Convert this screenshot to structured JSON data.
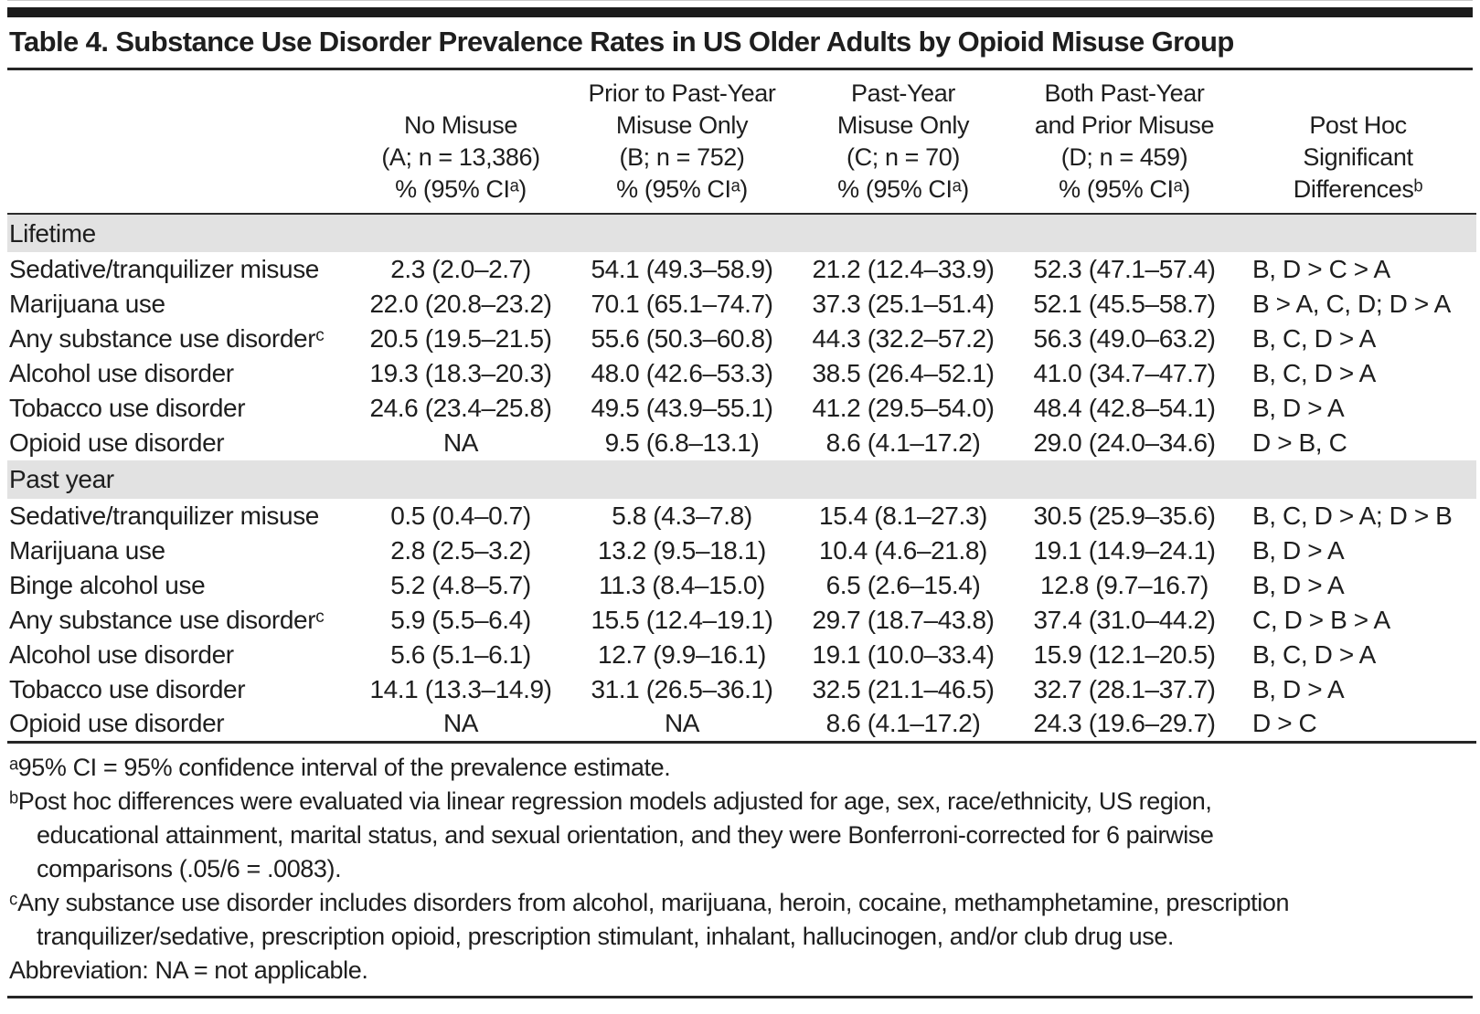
{
  "title": "Table 4. Substance Use Disorder Prevalence Rates in US Older Adults by Opioid Misuse Group",
  "colors": {
    "section_band": "#e2e2e2",
    "rule": "#262626",
    "text": "#1e1e1e"
  },
  "table": {
    "header": {
      "columns": [
        {
          "lines": []
        },
        {
          "lines": [
            "No Misuse",
            "(A; n = 13,386)",
            "% (95% CIᵃ)"
          ]
        },
        {
          "lines": [
            "Prior to Past-Year",
            "Misuse Only",
            "(B; n = 752)",
            "% (95% CIᵃ)"
          ]
        },
        {
          "lines": [
            "Past-Year",
            "Misuse Only",
            "(C; n = 70)",
            "% (95% CIᵃ)"
          ]
        },
        {
          "lines": [
            "Both Past-Year",
            "and Prior Misuse",
            "(D; n = 459)",
            "% (95% CIᵃ)"
          ]
        },
        {
          "lines": [
            "Post Hoc",
            "Significant",
            "Differencesᵇ"
          ]
        }
      ]
    },
    "sections": [
      {
        "label": "Lifetime",
        "rows": [
          {
            "label": "Sedative/tranquilizer misuse",
            "values": [
              "2.3 (2.0–2.7)",
              "54.1 (49.3–58.9)",
              "21.2 (12.4–33.9)",
              "52.3 (47.1–57.4)"
            ],
            "post_hoc": "B, D > C > A"
          },
          {
            "label": "Marijuana use",
            "values": [
              "22.0 (20.8–23.2)",
              "70.1 (65.1–74.7)",
              "37.3 (25.1–51.4)",
              "52.1 (45.5–58.7)"
            ],
            "post_hoc": "B > A, C, D; D > A"
          },
          {
            "label": "Any substance use disorderᶜ",
            "values": [
              "20.5 (19.5–21.5)",
              "55.6 (50.3–60.8)",
              "44.3 (32.2–57.2)",
              "56.3 (49.0–63.2)"
            ],
            "post_hoc": "B, C, D > A"
          },
          {
            "label": "Alcohol use disorder",
            "values": [
              "19.3 (18.3–20.3)",
              "48.0 (42.6–53.3)",
              "38.5 (26.4–52.1)",
              "41.0 (34.7–47.7)"
            ],
            "post_hoc": "B, C, D > A"
          },
          {
            "label": "Tobacco use disorder",
            "values": [
              "24.6 (23.4–25.8)",
              "49.5 (43.9–55.1)",
              "41.2 (29.5–54.0)",
              "48.4 (42.8–54.1)"
            ],
            "post_hoc": "B, D > A"
          },
          {
            "label": "Opioid use disorder",
            "values": [
              "NA",
              "9.5 (6.8–13.1)",
              "8.6 (4.1–17.2)",
              "29.0 (24.0–34.6)"
            ],
            "post_hoc": "D > B, C"
          }
        ]
      },
      {
        "label": "Past year",
        "rows": [
          {
            "label": "Sedative/tranquilizer misuse",
            "values": [
              "0.5 (0.4–0.7)",
              "5.8 (4.3–7.8)",
              "15.4 (8.1–27.3)",
              "30.5 (25.9–35.6)"
            ],
            "post_hoc": "B, C, D > A; D > B"
          },
          {
            "label": "Marijuana use",
            "values": [
              "2.8 (2.5–3.2)",
              "13.2 (9.5–18.1)",
              "10.4 (4.6–21.8)",
              "19.1 (14.9–24.1)"
            ],
            "post_hoc": "B, D > A"
          },
          {
            "label": "Binge alcohol use",
            "values": [
              "5.2 (4.8–5.7)",
              "11.3 (8.4–15.0)",
              "6.5 (2.6–15.4)",
              "12.8 (9.7–16.7)"
            ],
            "post_hoc": "B, D > A"
          },
          {
            "label": "Any substance use disorderᶜ",
            "values": [
              "5.9 (5.5–6.4)",
              "15.5 (12.4–19.1)",
              "29.7 (18.7–43.8)",
              "37.4 (31.0–44.2)"
            ],
            "post_hoc": "C, D > B > A"
          },
          {
            "label": "Alcohol use disorder",
            "values": [
              "5.6 (5.1–6.1)",
              "12.7 (9.9–16.1)",
              "19.1 (10.0–33.4)",
              "15.9 (12.1–20.5)"
            ],
            "post_hoc": "B, C, D > A"
          },
          {
            "label": "Tobacco use disorder",
            "values": [
              "14.1 (13.3–14.9)",
              "31.1 (26.5–36.1)",
              "32.5 (21.1–46.5)",
              "32.7 (28.1–37.7)"
            ],
            "post_hoc": "B, D > A"
          },
          {
            "label": "Opioid use disorder",
            "values": [
              "NA",
              "NA",
              "8.6 (4.1–17.2)",
              "24.3 (19.6–29.7)"
            ],
            "post_hoc": "D > C"
          }
        ]
      }
    ]
  },
  "footnotes": [
    {
      "lines": [
        "ᵃ95% CI = 95% confidence interval of the prevalence estimate."
      ]
    },
    {
      "lines": [
        "ᵇPost hoc differences were evaluated via linear regression models adjusted for age, sex, race/ethnicity, US region,",
        "educational attainment, marital status, and sexual orientation, and they were Bonferroni-corrected for 6 pairwise",
        "comparisons (.05/6 = .0083)."
      ]
    },
    {
      "lines": [
        "ᶜAny substance use disorder includes disorders from alcohol, marijuana, heroin, cocaine, methamphetamine, prescription",
        "tranquilizer/sedative, prescription opioid, prescription stimulant, inhalant, hallucinogen, and/or club drug use."
      ]
    },
    {
      "lines": [
        "Abbreviation: NA = not applicable."
      ]
    }
  ]
}
